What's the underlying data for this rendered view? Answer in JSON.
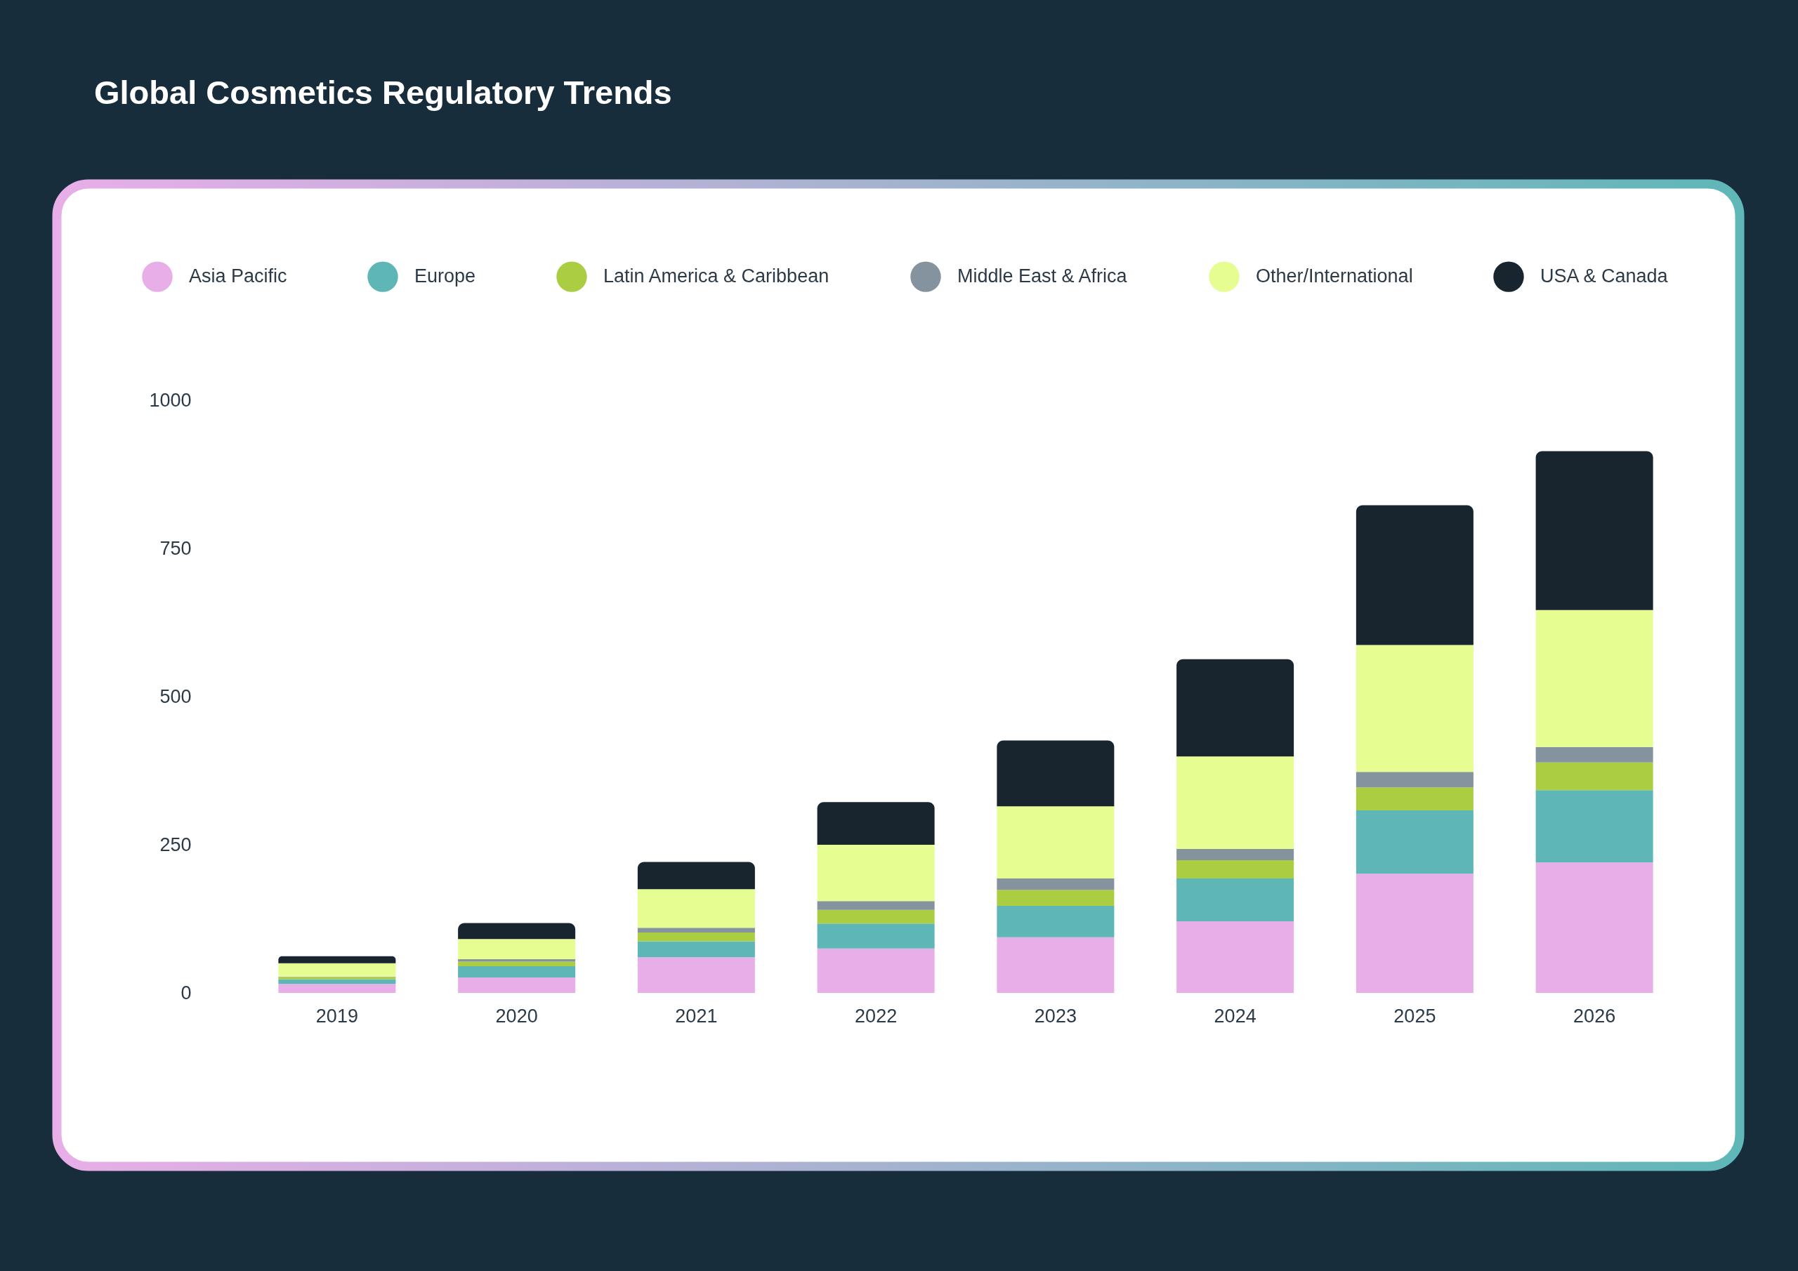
{
  "chart_data": {
    "type": "bar",
    "title": "Global Cosmetics Regulatory Trends",
    "categories": [
      "2019",
      "2020",
      "2021",
      "2022",
      "2023",
      "2024",
      "2025",
      "2026"
    ],
    "stacked": true,
    "series": [
      {
        "name": "Asia Pacific",
        "color": "#e8aee8",
        "values": [
          15,
          26,
          60,
          75,
          94,
          121,
          201,
          220
        ]
      },
      {
        "name": "Europe",
        "color": "#5fb6b7",
        "values": [
          8,
          19,
          27,
          42,
          53,
          72,
          107,
          122
        ]
      },
      {
        "name": "Latin America & Caribbean",
        "color": "#aacd42",
        "values": [
          3,
          8,
          15,
          23,
          27,
          31,
          39,
          47
        ]
      },
      {
        "name": "Middle East & Africa",
        "color": "#84939d",
        "values": [
          1,
          4,
          8,
          15,
          19,
          19,
          26,
          26
        ]
      },
      {
        "name": "Other/International",
        "color": "#e6fd92",
        "values": [
          23,
          34,
          65,
          95,
          122,
          156,
          214,
          231
        ]
      },
      {
        "name": "USA & Canada",
        "color": "#19252e",
        "values": [
          12,
          27,
          46,
          72,
          111,
          164,
          236,
          268
        ]
      }
    ],
    "ylim": [
      0,
      1000
    ],
    "yticks": [
      0,
      250,
      500,
      750,
      1000
    ],
    "legend": "top"
  }
}
